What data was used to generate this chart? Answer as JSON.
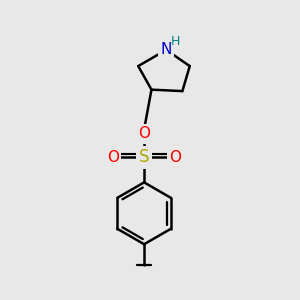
{
  "background_color": "#E8E8E8",
  "bond_color": "#000000",
  "bond_width": 1.8,
  "atom_colors": {
    "N": "#0000CC",
    "H_on_N": "#008080",
    "O": "#FF0000",
    "S": "#AAAA00",
    "C": "#000000"
  }
}
